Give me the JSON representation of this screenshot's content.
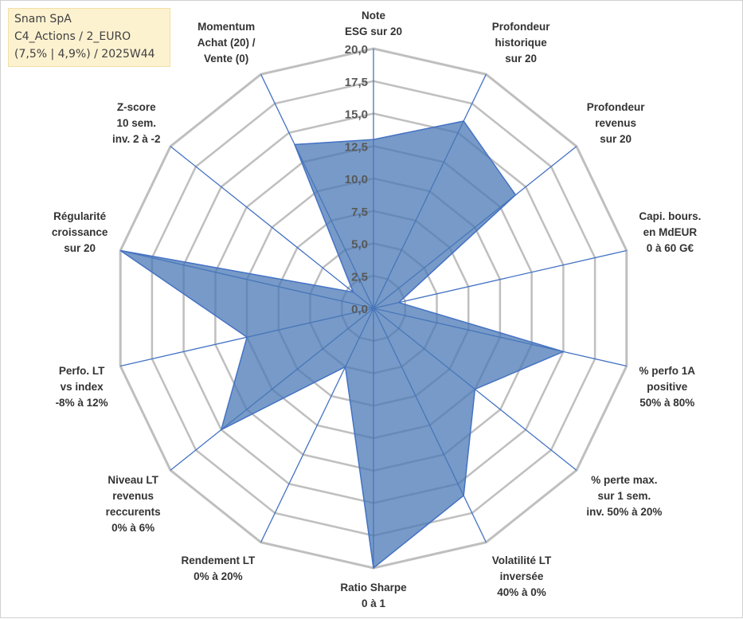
{
  "info_box": {
    "line1": "Snam SpA",
    "line2": "C4_Actions / 2_EURO",
    "line3": "(7,5% | 4,9%) / 2025W44"
  },
  "colors": {
    "series_fill": "#4a78b5",
    "series_stroke": "#4472c4",
    "spoke": "#4472c4",
    "ring": "#bfbfbf",
    "info_bg": "#fdf2d0"
  },
  "chart_data": {
    "type": "radar",
    "rmin": 0,
    "rmax": 20,
    "ticks": [
      "0,0",
      "2,5",
      "5,0",
      "7,5",
      "10,0",
      "12,5",
      "15,0",
      "17,5",
      "20,0"
    ],
    "grid": true,
    "axes": [
      [
        "Note",
        "ESG sur 20"
      ],
      [
        "Profondeur",
        "historique",
        "sur 20"
      ],
      [
        "Profondeur",
        "revenus",
        "sur 20"
      ],
      [
        "Capi. bours.",
        "en MdEUR",
        "0 à 60 G€"
      ],
      [
        "% perfo 1A",
        "positive",
        "50% à 80%"
      ],
      [
        "% perte max.",
        "sur 1 sem.",
        "inv. 50% à 20%"
      ],
      [
        "Volatilité LT",
        "inversée",
        "40% à 0%"
      ],
      [
        "Ratio Sharpe",
        "0 à 1"
      ],
      [
        "Rendement LT",
        "0% à 20%"
      ],
      [
        "Niveau LT",
        "revenus",
        "reccurents",
        "0% à 6%"
      ],
      [
        "Perfo. LT",
        "vs index",
        "-8% à 12%"
      ],
      [
        "Régularité",
        "croissance",
        "sur 20"
      ],
      [
        "Z-score",
        "10 sem.",
        "inv. 2 à -2"
      ],
      [
        "Momentum",
        "Achat (20) /",
        "Vente (0)"
      ]
    ],
    "values": [
      13,
      16,
      14,
      2,
      15,
      10,
      16,
      20,
      5,
      15,
      10,
      20,
      2,
      14
    ]
  }
}
